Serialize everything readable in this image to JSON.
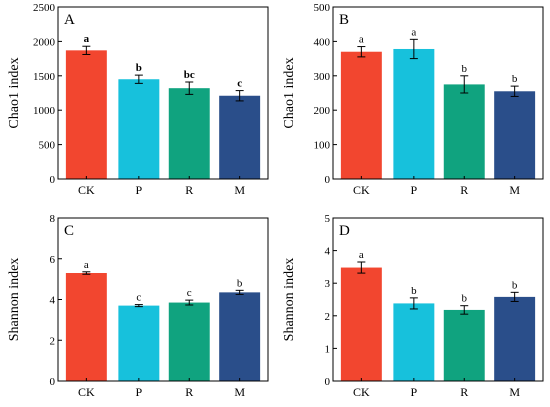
{
  "colors": {
    "CK": "#f2462f",
    "P": "#17c1dc",
    "R": "#10a37f",
    "M": "#2a4e8a",
    "axis": "#000000"
  },
  "chart_data": [
    {
      "panel": "A",
      "type": "bar",
      "ylabel": "Chao1 index",
      "ylim": [
        0,
        2500
      ],
      "yticks": [
        0,
        500,
        1000,
        1500,
        2000,
        2500
      ],
      "categories": [
        "CK",
        "P",
        "R",
        "M"
      ],
      "values": [
        1870,
        1450,
        1320,
        1210
      ],
      "errors": [
        60,
        60,
        90,
        75
      ],
      "significance": [
        "a",
        "b",
        "bc",
        "c"
      ],
      "bold_labels": true
    },
    {
      "panel": "B",
      "type": "bar",
      "ylabel": "Chao1 index",
      "ylim": [
        0,
        500
      ],
      "yticks": [
        0,
        100,
        200,
        300,
        400,
        500
      ],
      "categories": [
        "CK",
        "P",
        "R",
        "M"
      ],
      "values": [
        370,
        378,
        275,
        255
      ],
      "errors": [
        15,
        28,
        25,
        15
      ],
      "significance": [
        "a",
        "a",
        "b",
        "b"
      ],
      "bold_labels": false
    },
    {
      "panel": "C",
      "type": "bar",
      "ylabel": "Shannon index",
      "ylim": [
        0,
        8
      ],
      "yticks": [
        0,
        2,
        4,
        6,
        8
      ],
      "categories": [
        "CK",
        "P",
        "R",
        "M"
      ],
      "values": [
        5.3,
        3.7,
        3.85,
        4.35
      ],
      "errors": [
        0.06,
        0.05,
        0.12,
        0.1
      ],
      "significance": [
        "a",
        "c",
        "c",
        "b"
      ],
      "bold_labels": false
    },
    {
      "panel": "D",
      "type": "bar",
      "ylabel": "Shannon index",
      "ylim": [
        0,
        5
      ],
      "yticks": [
        0,
        1,
        2,
        3,
        4,
        5
      ],
      "categories": [
        "CK",
        "P",
        "R",
        "M"
      ],
      "values": [
        3.48,
        2.38,
        2.18,
        2.58
      ],
      "errors": [
        0.17,
        0.17,
        0.13,
        0.14
      ],
      "significance": [
        "a",
        "b",
        "b",
        "b"
      ],
      "bold_labels": false
    }
  ]
}
